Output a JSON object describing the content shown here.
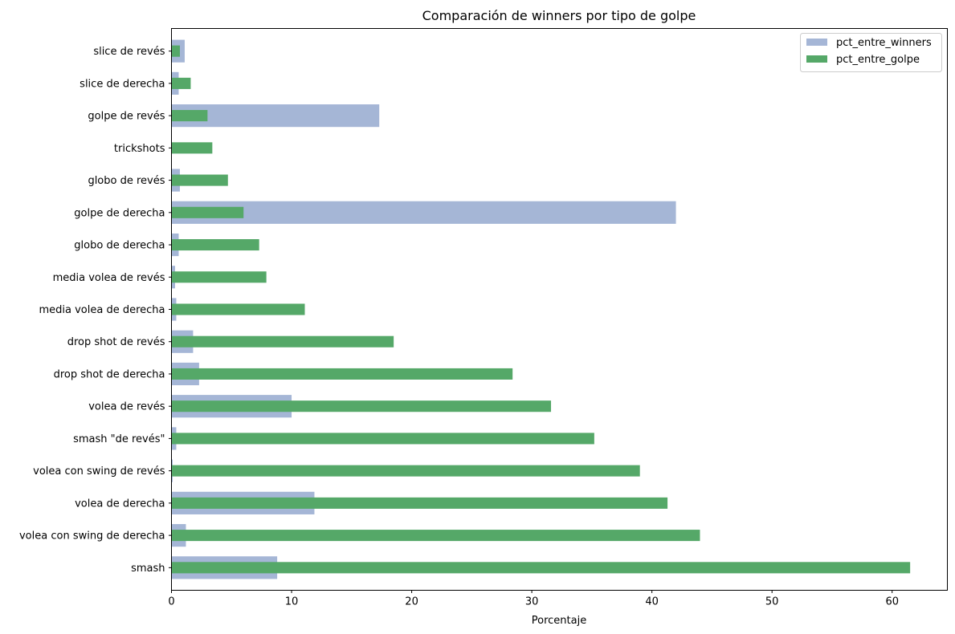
{
  "chart_data": {
    "type": "bar",
    "orientation": "horizontal",
    "title": "Comparación de winners por tipo de golpe",
    "xlabel": "Porcentaje",
    "ylabel": "",
    "xlim": [
      0,
      64.6
    ],
    "xticks": [
      0,
      10,
      20,
      30,
      40,
      50,
      60
    ],
    "grid": false,
    "legend_position": "top-right",
    "categories": [
      "smash",
      "volea con swing de derecha",
      "volea de derecha",
      "volea con swing de revés",
      "smash \"de revés\"",
      "volea de revés",
      "drop shot de derecha",
      "drop shot de revés",
      "media volea de derecha",
      "media volea de revés",
      "globo de derecha",
      "golpe de derecha",
      "globo de revés",
      "trickshots",
      "golpe de revés",
      "slice de derecha",
      "slice de revés"
    ],
    "series": [
      {
        "name": "pct_entre_winners",
        "color": "#a5b6d6",
        "values": [
          8.8,
          1.2,
          11.9,
          0.1,
          0.4,
          10.0,
          2.3,
          1.8,
          0.4,
          0.3,
          0.6,
          42.0,
          0.7,
          0.0,
          17.3,
          0.6,
          1.1
        ]
      },
      {
        "name": "pct_entre_golpe",
        "color": "#55a868",
        "values": [
          61.5,
          44.0,
          41.3,
          39.0,
          35.2,
          31.6,
          28.4,
          18.5,
          11.1,
          7.9,
          7.3,
          6.0,
          4.7,
          3.4,
          3.0,
          1.6,
          0.7
        ]
      }
    ]
  }
}
